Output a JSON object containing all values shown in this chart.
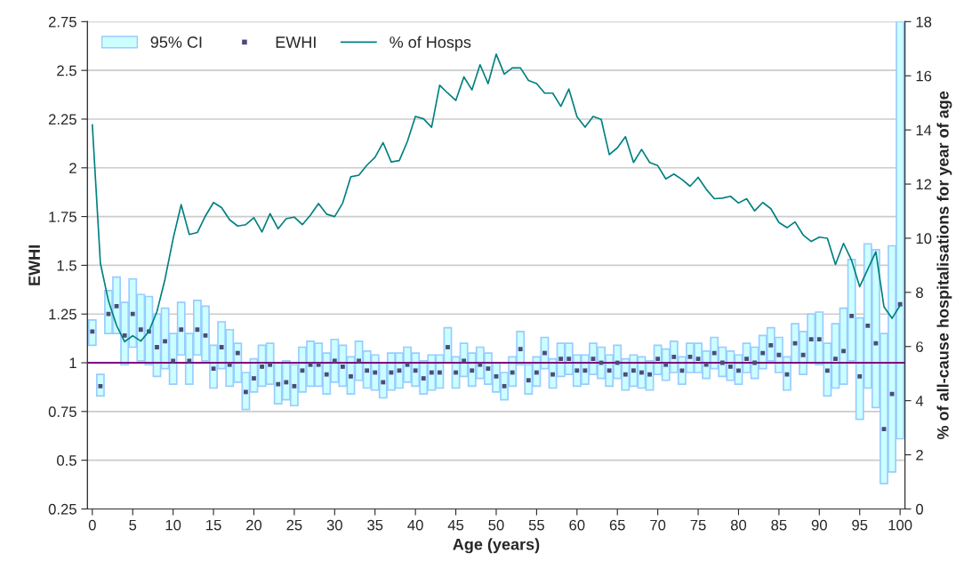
{
  "chart_data": {
    "type": "bar",
    "xlabel": "Age (years)",
    "ylabel": "EWHI",
    "y2label": "% of all-cause hospitalisations for year of age",
    "x": [
      0,
      1,
      2,
      3,
      4,
      5,
      6,
      7,
      8,
      9,
      10,
      11,
      12,
      13,
      14,
      15,
      16,
      17,
      18,
      19,
      20,
      21,
      22,
      23,
      24,
      25,
      26,
      27,
      28,
      29,
      30,
      31,
      32,
      33,
      34,
      35,
      36,
      37,
      38,
      39,
      40,
      41,
      42,
      43,
      44,
      45,
      46,
      47,
      48,
      49,
      50,
      51,
      52,
      53,
      54,
      55,
      56,
      57,
      58,
      59,
      60,
      61,
      62,
      63,
      64,
      65,
      66,
      67,
      68,
      69,
      70,
      71,
      72,
      73,
      74,
      75,
      76,
      77,
      78,
      79,
      80,
      81,
      82,
      83,
      84,
      85,
      86,
      87,
      88,
      89,
      90,
      91,
      92,
      93,
      94,
      95,
      96,
      97,
      98,
      99,
      100
    ],
    "xlim": [
      -0.6,
      100.6
    ],
    "xticks": [
      0,
      5,
      10,
      15,
      20,
      25,
      30,
      35,
      40,
      45,
      50,
      55,
      60,
      65,
      70,
      75,
      80,
      85,
      90,
      95,
      100
    ],
    "ylim": [
      0.25,
      2.75
    ],
    "yticks": [
      0.25,
      0.5,
      0.75,
      1,
      1.25,
      1.5,
      1.75,
      2,
      2.25,
      2.5,
      2.75
    ],
    "y2lim": [
      0,
      18
    ],
    "y2ticks": [
      0,
      2,
      4,
      6,
      8,
      10,
      12,
      14,
      16,
      18
    ],
    "grid": "y",
    "legend": "top left",
    "ref_lines": [
      {
        "axis": "y",
        "value": 1,
        "color": "#800080"
      }
    ],
    "series": [
      {
        "name": "95% CI",
        "color": "#ccffff",
        "base": [
          1.09,
          0.83,
          1.15,
          1.15,
          0.99,
          1.08,
          1.01,
          0.99,
          0.93,
          0.97,
          0.89,
          1.04,
          0.89,
          1.04,
          1.01,
          0.87,
          0.97,
          0.88,
          0.9,
          0.76,
          0.85,
          0.88,
          0.89,
          0.79,
          0.81,
          0.78,
          0.85,
          0.88,
          0.88,
          0.84,
          0.9,
          0.88,
          0.84,
          0.91,
          0.87,
          0.86,
          0.82,
          0.86,
          0.87,
          0.9,
          0.88,
          0.84,
          0.86,
          0.87,
          1.0,
          0.87,
          0.93,
          0.88,
          0.92,
          0.89,
          0.85,
          0.81,
          0.88,
          0.99,
          0.84,
          0.88,
          0.97,
          0.87,
          0.93,
          0.94,
          0.88,
          0.89,
          0.94,
          0.92,
          0.88,
          0.92,
          0.86,
          0.88,
          0.87,
          0.86,
          0.94,
          0.91,
          0.95,
          0.89,
          0.95,
          0.95,
          0.92,
          0.97,
          0.93,
          0.91,
          0.89,
          0.95,
          0.92,
          0.97,
          1.01,
          0.95,
          0.86,
          1.0,
          0.94,
          1.0,
          0.99,
          0.83,
          0.87,
          0.89,
          1.01,
          0.71,
          0.87,
          0.77,
          0.38,
          0.44,
          0.61
        ],
        "values": [
          0.13,
          0.11,
          0.22,
          0.29,
          0.32,
          0.35,
          0.34,
          0.35,
          0.32,
          0.31,
          0.26,
          0.27,
          0.26,
          0.28,
          0.28,
          0.22,
          0.24,
          0.29,
          0.2,
          0.19,
          0.17,
          0.21,
          0.21,
          0.21,
          0.2,
          0.21,
          0.23,
          0.23,
          0.22,
          0.21,
          0.22,
          0.21,
          0.19,
          0.2,
          0.19,
          0.18,
          0.18,
          0.19,
          0.18,
          0.18,
          0.17,
          0.17,
          0.18,
          0.17,
          0.18,
          0.16,
          0.17,
          0.17,
          0.16,
          0.16,
          0.15,
          0.14,
          0.15,
          0.17,
          0.15,
          0.15,
          0.16,
          0.15,
          0.17,
          0.16,
          0.16,
          0.15,
          0.16,
          0.16,
          0.16,
          0.17,
          0.16,
          0.16,
          0.16,
          0.15,
          0.15,
          0.16,
          0.16,
          0.14,
          0.15,
          0.15,
          0.14,
          0.16,
          0.15,
          0.15,
          0.15,
          0.15,
          0.16,
          0.17,
          0.17,
          0.18,
          0.17,
          0.2,
          0.22,
          0.25,
          0.27,
          0.27,
          0.33,
          0.39,
          0.52,
          0.52,
          0.74,
          0.81,
          0.77,
          1.16,
          2.14
        ]
      },
      {
        "name": "EWHI",
        "type": "scatter",
        "marker": "square",
        "color": "#4b4b7a",
        "values": [
          1.16,
          0.88,
          1.25,
          1.29,
          1.14,
          1.25,
          1.17,
          1.16,
          1.08,
          1.11,
          1.01,
          1.17,
          1.01,
          1.17,
          1.14,
          0.97,
          1.08,
          0.99,
          1.05,
          0.85,
          0.92,
          0.98,
          0.99,
          0.89,
          0.9,
          0.88,
          0.96,
          0.99,
          0.99,
          0.94,
          1.01,
          0.98,
          0.93,
          1.01,
          0.96,
          0.95,
          0.9,
          0.95,
          0.96,
          0.99,
          0.96,
          0.92,
          0.95,
          0.95,
          1.08,
          0.95,
          1.01,
          0.96,
          0.99,
          0.97,
          0.93,
          0.88,
          0.95,
          1.07,
          0.91,
          0.95,
          1.05,
          0.94,
          1.02,
          1.02,
          0.96,
          0.96,
          1.02,
          1.0,
          0.96,
          1.0,
          0.94,
          0.96,
          0.95,
          0.94,
          1.02,
          0.99,
          1.03,
          0.96,
          1.03,
          1.02,
          0.99,
          1.05,
          1.0,
          0.98,
          0.96,
          1.02,
          1.0,
          1.05,
          1.09,
          1.04,
          0.94,
          1.1,
          1.04,
          1.12,
          1.12,
          0.96,
          1.02,
          1.06,
          1.24,
          0.93,
          1.19,
          1.1,
          0.66,
          0.84,
          1.3
        ]
      },
      {
        "name": "% of Hosps",
        "type": "line",
        "axis": "y2",
        "color": "#008080",
        "values": [
          14.19,
          9.07,
          7.68,
          6.78,
          6.18,
          6.4,
          6.2,
          6.56,
          7.29,
          8.49,
          9.98,
          11.24,
          10.14,
          10.21,
          10.82,
          11.32,
          11.13,
          10.68,
          10.45,
          10.5,
          10.76,
          10.23,
          10.91,
          10.35,
          10.72,
          10.78,
          10.5,
          10.85,
          11.28,
          10.89,
          10.8,
          11.3,
          12.27,
          12.33,
          12.7,
          12.99,
          13.53,
          12.82,
          12.87,
          13.57,
          14.5,
          14.41,
          14.1,
          15.65,
          15.36,
          15.09,
          15.96,
          15.48,
          16.41,
          15.71,
          16.8,
          16.06,
          16.29,
          16.29,
          15.83,
          15.71,
          15.36,
          15.36,
          14.87,
          15.51,
          14.49,
          14.1,
          14.5,
          14.39,
          13.09,
          13.34,
          13.75,
          12.8,
          13.28,
          12.8,
          12.68,
          12.19,
          12.37,
          12.17,
          11.92,
          12.25,
          11.81,
          11.46,
          11.48,
          11.55,
          11.3,
          11.46,
          11.01,
          11.32,
          11.09,
          10.58,
          10.39,
          10.6,
          10.12,
          9.88,
          10.04,
          10.0,
          9.03,
          9.81,
          9.18,
          8.21,
          8.85,
          9.5,
          7.47,
          7.04,
          7.52
        ]
      }
    ]
  }
}
